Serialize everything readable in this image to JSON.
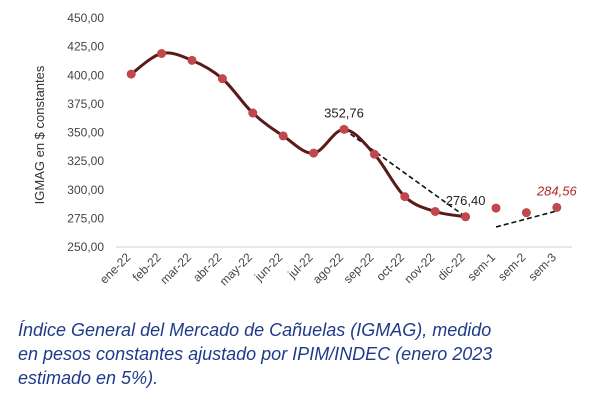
{
  "chart_data": {
    "type": "line",
    "ylabel": "IGMAG en $ constantes",
    "ylim": [
      250,
      450
    ],
    "y_ticks": [
      250,
      275,
      300,
      325,
      350,
      375,
      400,
      425,
      450
    ],
    "y_tick_labels": [
      "250,00",
      "275,00",
      "300,00",
      "325,00",
      "350,00",
      "375,00",
      "400,00",
      "425,00",
      "450,00"
    ],
    "categories": [
      "ene-22",
      "feb-22",
      "mar-22",
      "abr-22",
      "may-22",
      "jun-22",
      "jul-22",
      "ago-22",
      "sep-22",
      "oct-22",
      "nov-22",
      "dic-22",
      "sem-1",
      "sem-2",
      "sem-3"
    ],
    "series": [
      {
        "values": [
          401,
          419,
          413,
          397,
          367,
          347,
          332,
          352.76,
          331,
          294,
          281,
          276.4,
          null,
          null,
          null
        ],
        "style": "smooth-line-with-markers",
        "color": "#5a1a1a"
      },
      {
        "values": [
          null,
          null,
          null,
          null,
          null,
          null,
          null,
          null,
          null,
          null,
          null,
          null,
          284,
          280,
          284.56
        ],
        "style": "markers-only",
        "color": "#c0474b"
      }
    ],
    "marker_color": "#c0474b",
    "grid": false,
    "legend": "none",
    "annotations": [
      {
        "label": "352,76",
        "category": "ago-22",
        "value": 352.76,
        "color": "#222222"
      },
      {
        "label": "276,40",
        "category": "dic-22",
        "value": 276.4,
        "color": "#222222"
      },
      {
        "label": "284,56",
        "category": "sem-3",
        "value": 284.56,
        "color": "#b02a2a"
      }
    ],
    "trend_lines": [
      {
        "from": {
          "category": "ago-22",
          "value": 352.76
        },
        "to": {
          "category": "dic-22",
          "value": 276.4
        }
      },
      {
        "from": {
          "category": "sem-1",
          "value": 267.5
        },
        "to": {
          "category": "sem-3",
          "value": 281.5
        }
      }
    ]
  },
  "caption": {
    "line1": "Índice General del Mercado de Cañuelas (IGMAG), medido",
    "line2": "en pesos constantes ajustado por IPIM/INDEC (enero 2023",
    "line3": "estimado en 5%)."
  }
}
